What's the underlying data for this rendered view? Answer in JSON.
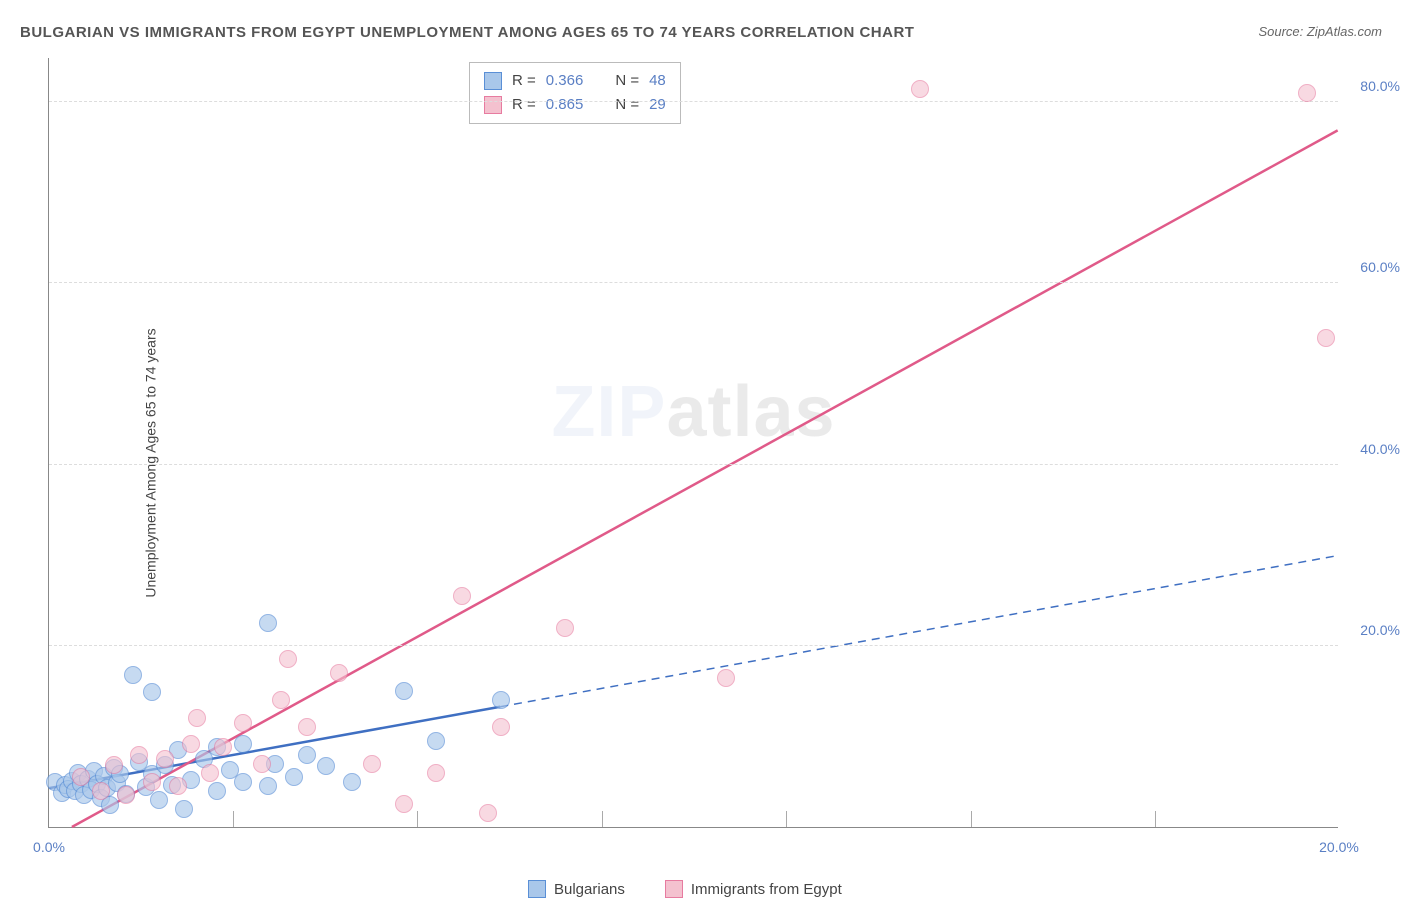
{
  "title": "BULGARIAN VS IMMIGRANTS FROM EGYPT UNEMPLOYMENT AMONG AGES 65 TO 74 YEARS CORRELATION CHART",
  "source_label": "Source: ZipAtlas.com",
  "watermark_a": "ZIP",
  "watermark_b": "atlas",
  "chart": {
    "type": "scatter",
    "y_axis_title": "Unemployment Among Ages 65 to 74 years",
    "xlim": [
      0,
      20
    ],
    "ylim": [
      0,
      85
    ],
    "x_ticks": [
      0.0,
      20.0
    ],
    "x_tick_labels": [
      "0.0%",
      "20.0%"
    ],
    "x_minor_ticks": [
      2.86,
      5.71,
      8.57,
      11.43,
      14.29,
      17.14
    ],
    "y_ticks": [
      20.0,
      40.0,
      60.0,
      80.0
    ],
    "y_tick_labels": [
      "20.0%",
      "40.0%",
      "60.0%",
      "80.0%"
    ],
    "grid_color": "#dddddd",
    "background_color": "#ffffff",
    "axis_color": "#888888",
    "series": [
      {
        "name": "Bulgarians",
        "marker_fill": "#a9c7ea",
        "marker_stroke": "#5a8fd6",
        "marker_opacity": 0.65,
        "marker_radius": 9,
        "trend_color": "#3f6fc2",
        "trend_width": 2.5,
        "trend_dash_after_x": 7.0,
        "trend_start": [
          0.0,
          4.3
        ],
        "trend_end": [
          20.0,
          30.0
        ],
        "R": "0.366",
        "N": "48",
        "points": [
          [
            0.1,
            5.0
          ],
          [
            0.2,
            3.8
          ],
          [
            0.25,
            4.6
          ],
          [
            0.3,
            4.2
          ],
          [
            0.35,
            5.1
          ],
          [
            0.4,
            4.0
          ],
          [
            0.45,
            6.0
          ],
          [
            0.5,
            4.8
          ],
          [
            0.55,
            3.5
          ],
          [
            0.6,
            5.3
          ],
          [
            0.65,
            4.1
          ],
          [
            0.7,
            6.2
          ],
          [
            0.75,
            4.7
          ],
          [
            0.8,
            3.2
          ],
          [
            0.85,
            5.6
          ],
          [
            0.9,
            4.3
          ],
          [
            0.95,
            2.4
          ],
          [
            1.0,
            6.5
          ],
          [
            1.05,
            4.9
          ],
          [
            1.1,
            5.8
          ],
          [
            1.2,
            3.6
          ],
          [
            1.3,
            16.8
          ],
          [
            1.4,
            7.2
          ],
          [
            1.5,
            4.4
          ],
          [
            1.6,
            5.9
          ],
          [
            1.6,
            14.9
          ],
          [
            1.7,
            3.0
          ],
          [
            1.8,
            6.8
          ],
          [
            1.9,
            4.6
          ],
          [
            2.0,
            8.5
          ],
          [
            2.1,
            2.0
          ],
          [
            2.2,
            5.2
          ],
          [
            2.4,
            7.5
          ],
          [
            2.6,
            4.0
          ],
          [
            2.6,
            8.8
          ],
          [
            2.8,
            6.3
          ],
          [
            3.0,
            9.2
          ],
          [
            3.0,
            5.0
          ],
          [
            3.4,
            4.5
          ],
          [
            3.4,
            22.5
          ],
          [
            3.5,
            7.0
          ],
          [
            3.8,
            5.5
          ],
          [
            4.0,
            8.0
          ],
          [
            4.3,
            6.7
          ],
          [
            4.7,
            5.0
          ],
          [
            5.5,
            15.0
          ],
          [
            6.0,
            9.5
          ],
          [
            7.0,
            14.0
          ]
        ]
      },
      {
        "name": "Immigrants from Egypt",
        "marker_fill": "#f4c1cf",
        "marker_stroke": "#e77ba0",
        "marker_opacity": 0.6,
        "marker_radius": 9,
        "trend_color": "#e05a89",
        "trend_width": 2.5,
        "trend_dash_after_x": null,
        "trend_start": [
          0.35,
          0.0
        ],
        "trend_end": [
          20.0,
          77.0
        ],
        "R": "0.865",
        "N": "29",
        "points": [
          [
            0.5,
            5.5
          ],
          [
            0.8,
            4.0
          ],
          [
            1.0,
            6.8
          ],
          [
            1.2,
            3.5
          ],
          [
            1.4,
            8.0
          ],
          [
            1.6,
            5.0
          ],
          [
            1.8,
            7.5
          ],
          [
            2.0,
            4.5
          ],
          [
            2.2,
            9.2
          ],
          [
            2.3,
            12.0
          ],
          [
            2.5,
            6.0
          ],
          [
            2.7,
            8.8
          ],
          [
            3.0,
            11.5
          ],
          [
            3.3,
            7.0
          ],
          [
            3.6,
            14.0
          ],
          [
            3.7,
            18.5
          ],
          [
            4.0,
            11.0
          ],
          [
            4.5,
            17.0
          ],
          [
            5.0,
            7.0
          ],
          [
            5.5,
            2.5
          ],
          [
            6.0,
            6.0
          ],
          [
            6.4,
            25.5
          ],
          [
            6.8,
            1.5
          ],
          [
            7.0,
            11.0
          ],
          [
            8.0,
            22.0
          ],
          [
            10.5,
            16.5
          ],
          [
            13.5,
            81.5
          ],
          [
            19.5,
            81.0
          ],
          [
            19.8,
            54.0
          ]
        ]
      }
    ],
    "stats_box": {
      "rows": [
        {
          "swatch_fill": "#a9c7ea",
          "swatch_stroke": "#5a8fd6",
          "r_label": "R =",
          "r_val": "0.366",
          "n_label": "N =",
          "n_val": "48"
        },
        {
          "swatch_fill": "#f4c1cf",
          "swatch_stroke": "#e77ba0",
          "r_label": "R =",
          "r_val": "0.865",
          "n_label": "N =",
          "n_val": "29"
        }
      ]
    },
    "legend": [
      {
        "swatch_fill": "#a9c7ea",
        "swatch_stroke": "#5a8fd6",
        "label": "Bulgarians"
      },
      {
        "swatch_fill": "#f4c1cf",
        "swatch_stroke": "#e77ba0",
        "label": "Immigrants from Egypt"
      }
    ]
  }
}
